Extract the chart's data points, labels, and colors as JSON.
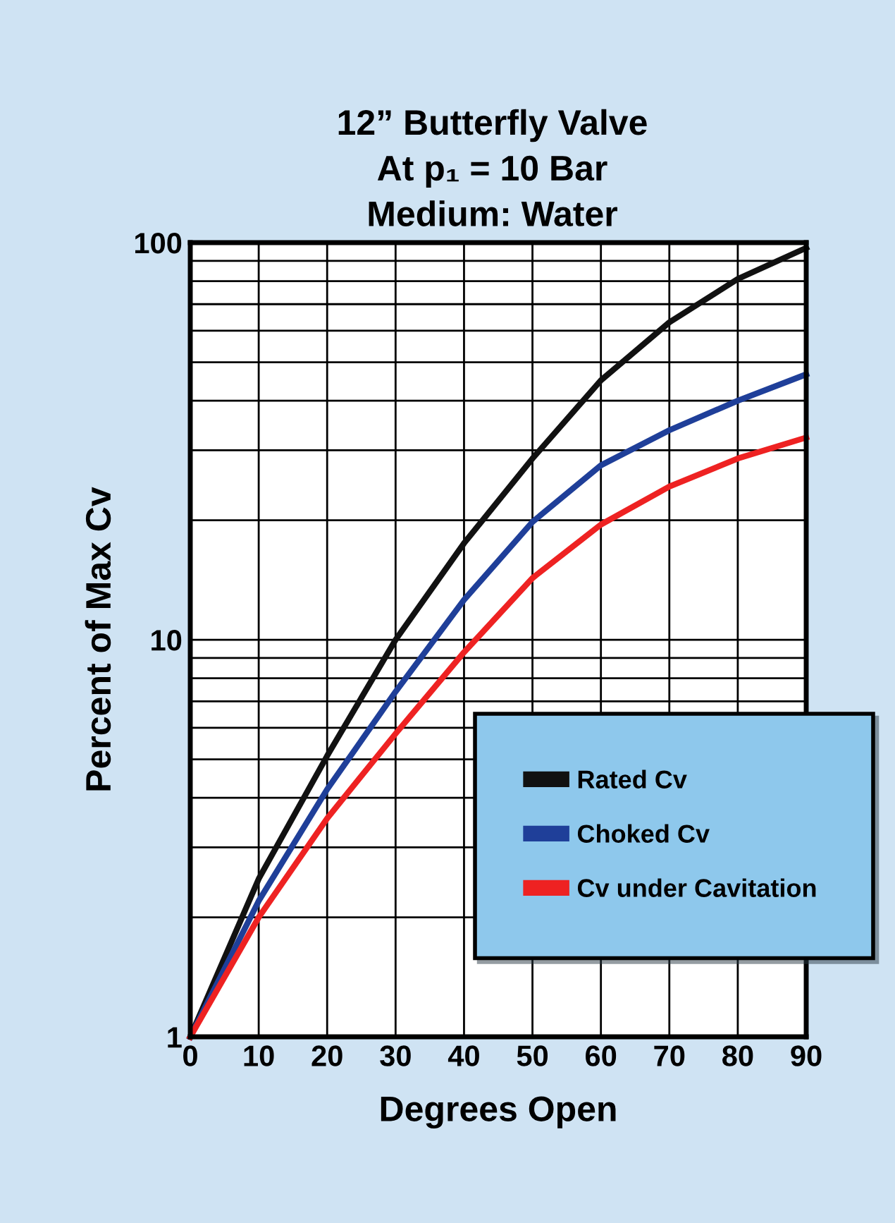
{
  "chart_data": {
    "type": "line",
    "title": "12” Butterfly Valve\nAt p₁ = 10 Bar\nMedium: Water",
    "xlabel": "Degrees Open",
    "ylabel": "Percent of Max Cv",
    "log": "y",
    "grid": true,
    "legend": "bottom right",
    "line_style": "solid",
    "marker": "none",
    "x": [
      0,
      10,
      20,
      30,
      40,
      50,
      60,
      70,
      80,
      90
    ],
    "xlim": [
      0,
      90
    ],
    "xticks": [
      0,
      10,
      20,
      30,
      40,
      50,
      60,
      70,
      80,
      90
    ],
    "ylim": [
      1,
      100
    ],
    "yticks": [
      1,
      {
        "value": 2,
        "label": null
      },
      {
        "value": 3,
        "label": null
      },
      {
        "value": 4,
        "label": null
      },
      {
        "value": 5,
        "label": null
      },
      {
        "value": 6,
        "label": null
      },
      {
        "value": 7,
        "label": null
      },
      {
        "value": 8,
        "label": null
      },
      {
        "value": 9,
        "label": null
      },
      10,
      {
        "value": 20,
        "label": null
      },
      {
        "value": 30,
        "label": null
      },
      {
        "value": 40,
        "label": null
      },
      {
        "value": 50,
        "label": null
      },
      {
        "value": 60,
        "label": null
      },
      {
        "value": 70,
        "label": null
      },
      {
        "value": 80,
        "label": null
      },
      {
        "value": 90,
        "label": null
      },
      100
    ],
    "series": [
      {
        "name": "Rated Cv",
        "color": "#111111",
        "values": [
          1,
          2.5,
          5.1,
          10,
          17.5,
          28.6,
          45,
          63,
          81,
          97
        ]
      },
      {
        "name": "Choked Cv",
        "color": "#1f3f99",
        "values": [
          1,
          2.2,
          4.2,
          7.4,
          12.6,
          19.8,
          27.5,
          33.7,
          40,
          46.6
        ]
      },
      {
        "name": "Cv under Cavitation",
        "color": "#ee2222",
        "values": [
          1,
          2.0,
          3.55,
          5.8,
          9.3,
          14.3,
          19.5,
          24.3,
          28.6,
          32.3
        ]
      }
    ]
  }
}
